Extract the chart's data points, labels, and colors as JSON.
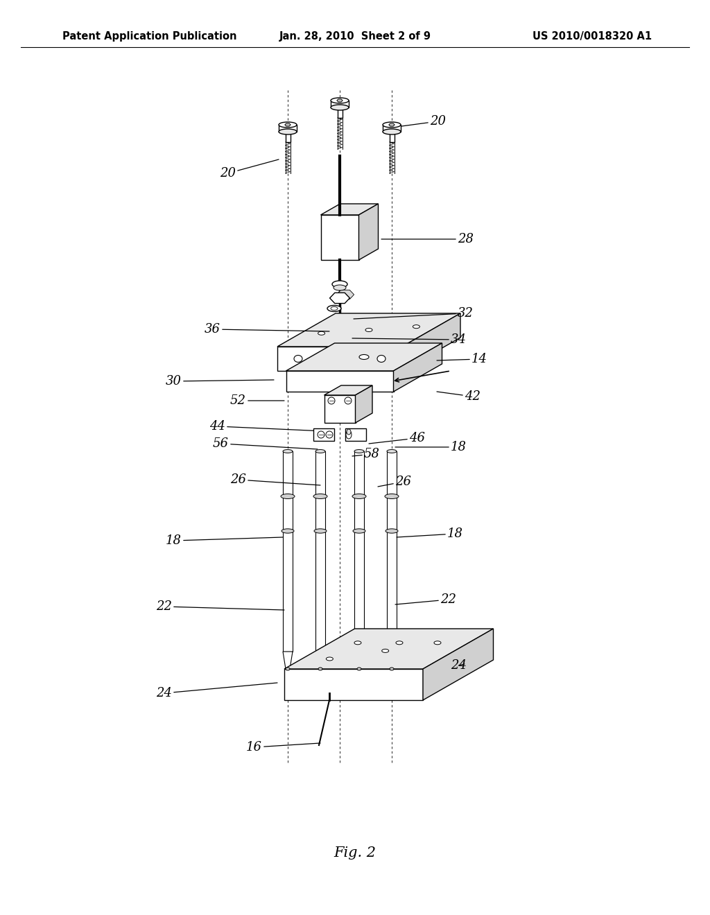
{
  "title_left": "Patent Application Publication",
  "title_center": "Jan. 28, 2010  Sheet 2 of 9",
  "title_right": "US 2010/0018320 A1",
  "fig_label": "Fig. 2",
  "bg_color": "#ffffff",
  "line_color": "#000000",
  "text_color": "#000000",
  "header_fontsize": 10.5,
  "label_fontsize": 13,
  "fig_label_fontsize": 15
}
